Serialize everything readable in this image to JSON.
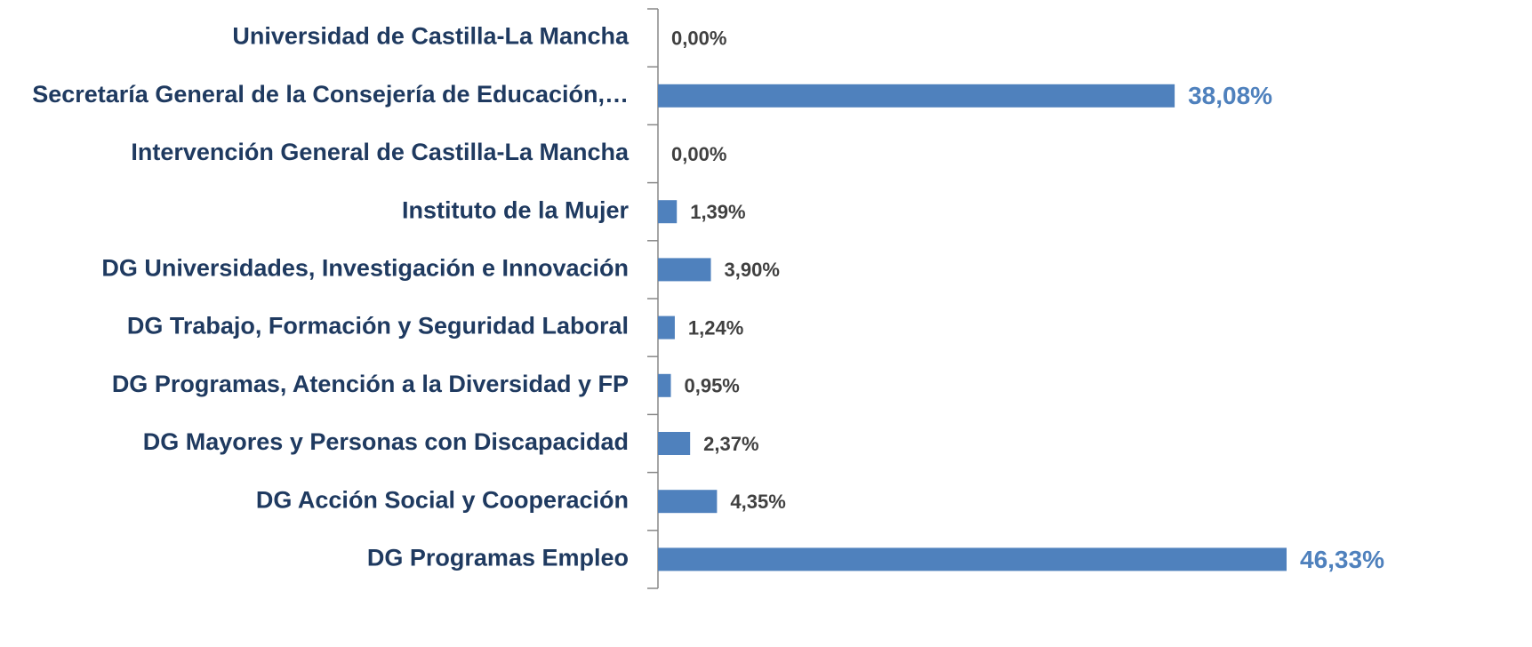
{
  "chart_data": {
    "type": "bar",
    "orientation": "horizontal",
    "color": "#4f81bd",
    "categories": [
      "Universidad de Castilla-La Mancha",
      "Secretaría General de la Consejería de Educación,…",
      "Intervención General de Castilla-La Mancha",
      "Instituto de la Mujer",
      "DG Universidades, Investigación e Innovación",
      "DG Trabajo, Formación y Seguridad Laboral",
      "DG Programas, Atención a la Diversidad y FP",
      "DG Mayores y Personas con Discapacidad",
      "DG Acción Social y Cooperación",
      "DG Programas Empleo"
    ],
    "values": [
      0,
      38.08,
      0,
      1.39,
      3.9,
      1.24,
      0.95,
      2.37,
      4.35,
      46.33
    ],
    "value_labels": [
      "0,00%",
      "38,08%",
      "0,00%",
      "1,39%",
      "3,90%",
      "1,24%",
      "0,95%",
      "2,37%",
      "4,35%",
      "46,33%"
    ]
  }
}
